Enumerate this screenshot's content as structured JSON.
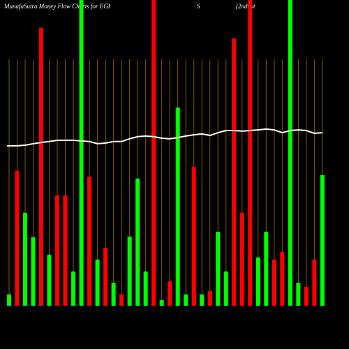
{
  "chart_data": {
    "type": "bar",
    "title": "MunafaSutra  Money Flow  Charts for EGI",
    "title_parts": [
      "S",
      "(2ndvot"
    ],
    "categories": [
      null,
      null,
      null,
      null,
      null,
      null,
      null,
      null,
      null,
      null,
      null,
      null,
      null,
      null,
      null,
      null,
      null,
      null,
      null,
      null,
      null,
      null,
      null,
      null,
      null,
      null,
      null,
      null,
      null,
      null,
      null,
      null,
      null,
      null,
      null,
      null,
      null,
      null,
      null,
      null
    ],
    "values": [
      3.7,
      44.1,
      30.4,
      22.4,
      90.9,
      16.7,
      36.1,
      36.1,
      11.2,
      100,
      42.2,
      15.1,
      18.9,
      7.5,
      3.7,
      22.6,
      41.6,
      11.2,
      100,
      1.8,
      8,
      64.8,
      3.7,
      45.4,
      3.7,
      4.8,
      24.2,
      11.2,
      87.4,
      30.4,
      100,
      15.8,
      24.2,
      15.1,
      17.6,
      100,
      7.5,
      6.2,
      15.1,
      42.7
    ],
    "colors": [
      "#00ff00",
      "#ff0000",
      "#00ff00",
      "#00ff00",
      "#ff0000",
      "#00ff00",
      "#ff0000",
      "#ff0000",
      "#00ff00",
      "#00ff00",
      "#ff0000",
      "#00ff00",
      "#ff0000",
      "#00ff00",
      "#ff0000",
      "#00ff00",
      "#00ff00",
      "#00ff00",
      "#ff0000",
      "#00ff00",
      "#ff0000",
      "#00ff00",
      "#00ff00",
      "#ff0000",
      "#00ff00",
      "#ff0000",
      "#00ff00",
      "#00ff00",
      "#ff0000",
      "#ff0000",
      "#ff0000",
      "#00ff00",
      "#00ff00",
      "#ff0000",
      "#ff0000",
      "#00ff00",
      "#00ff00",
      "#ff0000",
      "#ff0000",
      "#00ff00"
    ],
    "line": {
      "color": "#ffffff",
      "values": [
        52.3,
        52.3,
        52.5,
        53,
        53.4,
        53.7,
        54.1,
        54.1,
        54.1,
        53.9,
        53.7,
        53,
        53.2,
        53.7,
        53.7,
        54.6,
        55.3,
        55.5,
        55.3,
        54.8,
        54.6,
        55,
        55.5,
        55.9,
        56.2,
        55.7,
        56.6,
        57.3,
        57.3,
        57.1,
        57.3,
        57.5,
        57.8,
        57.5,
        56.6,
        57.3,
        57.5,
        57.3,
        56.4,
        56.6
      ]
    },
    "ylim": [
      0,
      100
    ]
  }
}
